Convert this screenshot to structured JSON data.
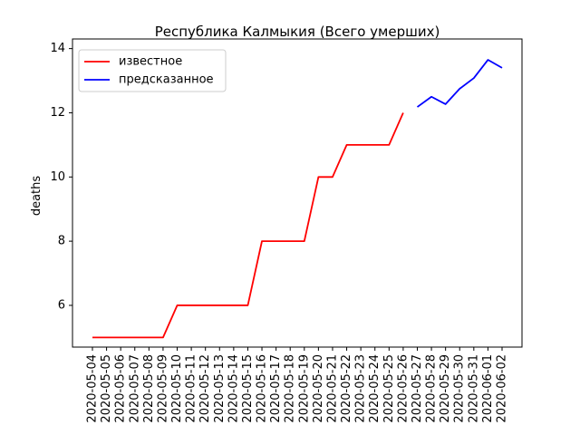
{
  "chart_data": {
    "type": "line",
    "title": "Республика Калмыкия (Всего умерших)",
    "xlabel": "",
    "ylabel": "deaths",
    "ylim": [
      4.7,
      14.3
    ],
    "yticks": [
      6,
      8,
      10,
      12,
      14
    ],
    "grid": false,
    "legend_position": "top-left",
    "x": [
      "2020-05-04",
      "2020-05-05",
      "2020-05-06",
      "2020-05-07",
      "2020-05-08",
      "2020-05-09",
      "2020-05-10",
      "2020-05-11",
      "2020-05-12",
      "2020-05-13",
      "2020-05-14",
      "2020-05-15",
      "2020-05-16",
      "2020-05-17",
      "2020-05-18",
      "2020-05-19",
      "2020-05-20",
      "2020-05-21",
      "2020-05-22",
      "2020-05-23",
      "2020-05-24",
      "2020-05-25",
      "2020-05-26",
      "2020-05-27",
      "2020-05-28",
      "2020-05-29",
      "2020-05-30",
      "2020-05-31",
      "2020-06-01",
      "2020-06-02"
    ],
    "series": [
      {
        "name": "известное",
        "color": "#ff0000",
        "x": [
          "2020-05-04",
          "2020-05-05",
          "2020-05-06",
          "2020-05-07",
          "2020-05-08",
          "2020-05-09",
          "2020-05-10",
          "2020-05-11",
          "2020-05-12",
          "2020-05-13",
          "2020-05-14",
          "2020-05-15",
          "2020-05-16",
          "2020-05-17",
          "2020-05-18",
          "2020-05-19",
          "2020-05-20",
          "2020-05-21",
          "2020-05-22",
          "2020-05-23",
          "2020-05-24",
          "2020-05-25",
          "2020-05-26"
        ],
        "values": [
          5,
          5,
          5,
          5,
          5,
          5,
          6,
          6,
          6,
          6,
          6,
          6,
          8,
          8,
          8,
          8,
          10,
          10,
          11,
          11,
          11,
          11,
          12
        ]
      },
      {
        "name": "предсказанное",
        "color": "#0000ff",
        "x": [
          "2020-05-27",
          "2020-05-28",
          "2020-05-29",
          "2020-05-30",
          "2020-05-31",
          "2020-06-01",
          "2020-06-02"
        ],
        "values": [
          12.18,
          12.5,
          12.27,
          12.75,
          13.08,
          13.65,
          13.4
        ]
      }
    ]
  }
}
